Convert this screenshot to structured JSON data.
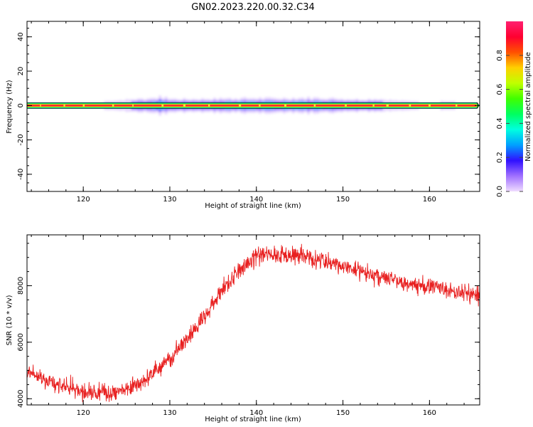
{
  "figure": {
    "title": "GN02.2023.220.00.32.C34"
  },
  "chart_data": [
    {
      "type": "heatmap",
      "xlabel": "Height of straight line (km)",
      "ylabel": "Frequency (Hz)",
      "xlim": [
        113.5,
        165.8
      ],
      "ylim": [
        -50,
        49
      ],
      "x_ticks": [
        120,
        130,
        140,
        150,
        160
      ],
      "y_ticks": [
        -40,
        -20,
        0,
        20,
        40
      ],
      "grid": false,
      "band_center_hz": 0,
      "band_halfwidth_hz": 1.2,
      "colorbar": {
        "label": "Normalized spectral amplitude",
        "range": [
          0,
          1
        ],
        "ticks": [
          0.0,
          0.2,
          0.4,
          0.6,
          0.8
        ],
        "colormap": [
          "#f0dcff",
          "#a070ff",
          "#3010ff",
          "#00a0ff",
          "#00ffe0",
          "#00ff60",
          "#40ff00",
          "#c0ff00",
          "#ffd000",
          "#ff5000",
          "#ff0030",
          "#ff2070"
        ]
      },
      "amplitude_profile": {
        "x": [
          114,
          116,
          118,
          120,
          122,
          124,
          126,
          128,
          129,
          130,
          132,
          134,
          136,
          138,
          140,
          142,
          144,
          146,
          148,
          150,
          152,
          154,
          156,
          158,
          160,
          162,
          164,
          165.5
        ],
        "halo": [
          0.1,
          0.1,
          0.1,
          0.1,
          0.15,
          0.3,
          0.55,
          0.7,
          1.0,
          0.6,
          0.55,
          0.6,
          0.65,
          0.7,
          0.75,
          0.7,
          0.75,
          0.8,
          0.75,
          0.6,
          0.5,
          0.6,
          0.3,
          0.2,
          0.15,
          0.2,
          0.15,
          0.1
        ]
      }
    },
    {
      "type": "line",
      "xlabel": "Height of straight line (km)",
      "ylabel": "SNR (10 * v/v)",
      "xlim": [
        113.5,
        165.8
      ],
      "ylim": [
        3780,
        9800
      ],
      "x_ticks": [
        120,
        130,
        140,
        150,
        160
      ],
      "y_ticks": [
        4000,
        6000,
        8000
      ],
      "grid": false,
      "series": [
        {
          "color": "#e82020",
          "x": [
            113.5,
            115,
            116,
            117,
            118,
            119,
            120,
            121,
            122,
            123,
            124,
            125,
            126,
            127,
            128,
            129,
            130,
            131,
            132,
            133,
            134,
            135,
            136,
            137,
            138,
            139,
            140,
            141,
            142,
            143,
            144,
            145,
            146,
            147,
            148,
            149,
            150,
            151,
            152,
            153,
            154,
            155,
            156,
            157,
            158,
            159,
            160,
            161,
            162,
            163,
            164,
            165,
            165.8
          ],
          "y": [
            5000,
            4750,
            4600,
            4480,
            4420,
            4330,
            4280,
            4230,
            4200,
            4210,
            4240,
            4320,
            4450,
            4650,
            4900,
            5150,
            5400,
            5750,
            6100,
            6500,
            6900,
            7350,
            7800,
            8150,
            8500,
            8800,
            9050,
            9130,
            9120,
            9060,
            9080,
            9100,
            9030,
            8950,
            8850,
            8750,
            8680,
            8600,
            8500,
            8430,
            8350,
            8300,
            8220,
            8150,
            8080,
            8020,
            7960,
            7910,
            7860,
            7810,
            7760,
            7720,
            7700
          ],
          "noise_amplitude": 220
        }
      ]
    }
  ]
}
